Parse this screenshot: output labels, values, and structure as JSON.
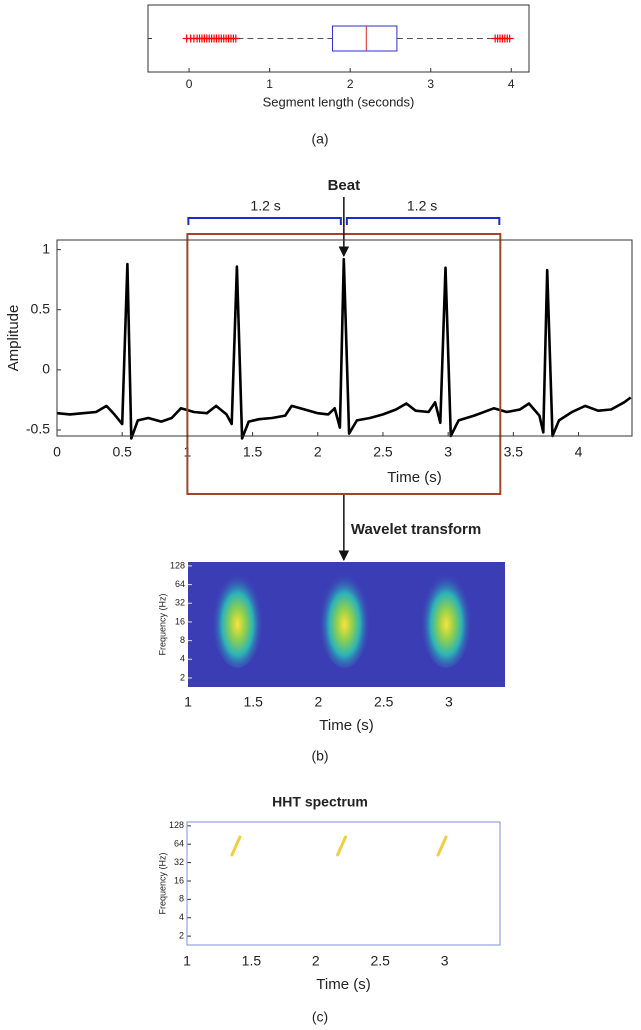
{
  "chart_data": [
    {
      "type": "box",
      "xlabel": "Segment length (seconds)",
      "caption": "(a)",
      "xlim": [
        -0.51,
        4.22
      ],
      "xticks": [
        0,
        1,
        2,
        3,
        4
      ],
      "q1": 1.78,
      "median": 2.2,
      "q3": 2.58,
      "whisker_low": 0.6,
      "whisker_high": 3.78,
      "outliers": [
        -0.03,
        0.02,
        0.06,
        0.1,
        0.13,
        0.16,
        0.19,
        0.22,
        0.25,
        0.28,
        0.31,
        0.34,
        0.37,
        0.4,
        0.43,
        0.46,
        0.49,
        0.52,
        0.55,
        0.58,
        3.8,
        3.83,
        3.86,
        3.89,
        3.92,
        3.95,
        3.98
      ],
      "box_color": "#2b2bd6",
      "median_color": "#e02020",
      "outlier_color": "#ff0000",
      "whisker_color": "#555555"
    },
    {
      "type": "line",
      "xlabel": "Time (s)",
      "ylabel": "Amplitude",
      "xlim": [
        0,
        4.41
      ],
      "ylim": [
        -0.55,
        1.08
      ],
      "xticks": [
        0,
        0.5,
        1,
        1.5,
        2,
        2.5,
        3,
        3.5,
        4
      ],
      "yticks": [
        -0.5,
        0,
        0.5,
        1
      ],
      "x": [
        0,
        0.1,
        0.2,
        0.3,
        0.38,
        0.44,
        0.5,
        0.54,
        0.57,
        0.62,
        0.7,
        0.8,
        0.88,
        0.95,
        1.05,
        1.15,
        1.22,
        1.3,
        1.34,
        1.38,
        1.42,
        1.47,
        1.55,
        1.65,
        1.75,
        1.8,
        1.9,
        2.0,
        2.08,
        2.13,
        2.17,
        2.2,
        2.24,
        2.3,
        2.4,
        2.5,
        2.6,
        2.68,
        2.75,
        2.85,
        2.9,
        2.94,
        2.98,
        3.02,
        3.08,
        3.2,
        3.35,
        3.45,
        3.55,
        3.62,
        3.7,
        3.73,
        3.76,
        3.8,
        3.85,
        3.95,
        4.05,
        4.15,
        4.25,
        4.35,
        4.4
      ],
      "values": [
        -0.36,
        -0.37,
        -0.36,
        -0.35,
        -0.3,
        -0.37,
        -0.45,
        0.88,
        -0.57,
        -0.42,
        -0.4,
        -0.43,
        -0.4,
        -0.32,
        -0.35,
        -0.36,
        -0.3,
        -0.37,
        -0.45,
        0.86,
        -0.57,
        -0.43,
        -0.41,
        -0.4,
        -0.38,
        -0.3,
        -0.33,
        -0.36,
        -0.37,
        -0.32,
        -0.48,
        0.92,
        -0.53,
        -0.42,
        -0.4,
        -0.37,
        -0.33,
        -0.28,
        -0.34,
        -0.35,
        -0.27,
        -0.44,
        0.85,
        -0.55,
        -0.42,
        -0.38,
        -0.32,
        -0.35,
        -0.33,
        -0.28,
        -0.38,
        -0.52,
        0.83,
        -0.55,
        -0.42,
        -0.35,
        -0.3,
        -0.34,
        -0.33,
        -0.27,
        -0.23
      ],
      "color": "#000000",
      "window": [
        1,
        3.4
      ],
      "window_color": "#a0452a",
      "beat_time": 2.2,
      "beat_label": "Beat",
      "span_labels": [
        "1.2 s",
        "1.2 s"
      ],
      "span_color": "#1a2fc0",
      "arrow_label": "Wavelet transform"
    },
    {
      "type": "heatmap",
      "xlabel": "Time (s)",
      "ylabel": "Frequency (Hz)",
      "caption": "(b)",
      "xlim": [
        1,
        3.43
      ],
      "xticks": [
        1,
        1.5,
        2,
        2.5,
        3
      ],
      "ylim": [
        1.43,
        148
      ],
      "yscale": "log",
      "yticks": [
        2,
        4,
        8,
        16,
        32,
        64,
        128
      ],
      "peaks": [
        1.38,
        2.2,
        2.98
      ],
      "peak_frequency": 20,
      "background": "#3b3db5"
    },
    {
      "type": "hht",
      "title": "HHT spectrum",
      "xlabel": "Time (s)",
      "ylabel": "Frequency (Hz)",
      "caption": "(c)",
      "xlim": [
        1,
        3.43
      ],
      "xticks": [
        1,
        1.5,
        2,
        2.5,
        3
      ],
      "ylim": [
        1.43,
        148
      ],
      "yscale": "log",
      "yticks": [
        2,
        4,
        8,
        16,
        32,
        64,
        128
      ],
      "peaks": [
        1.38,
        2.2,
        2.98
      ],
      "peak_frequency": 60,
      "color": "#f0cf3a",
      "frame_color": "#7f8fd8"
    }
  ]
}
